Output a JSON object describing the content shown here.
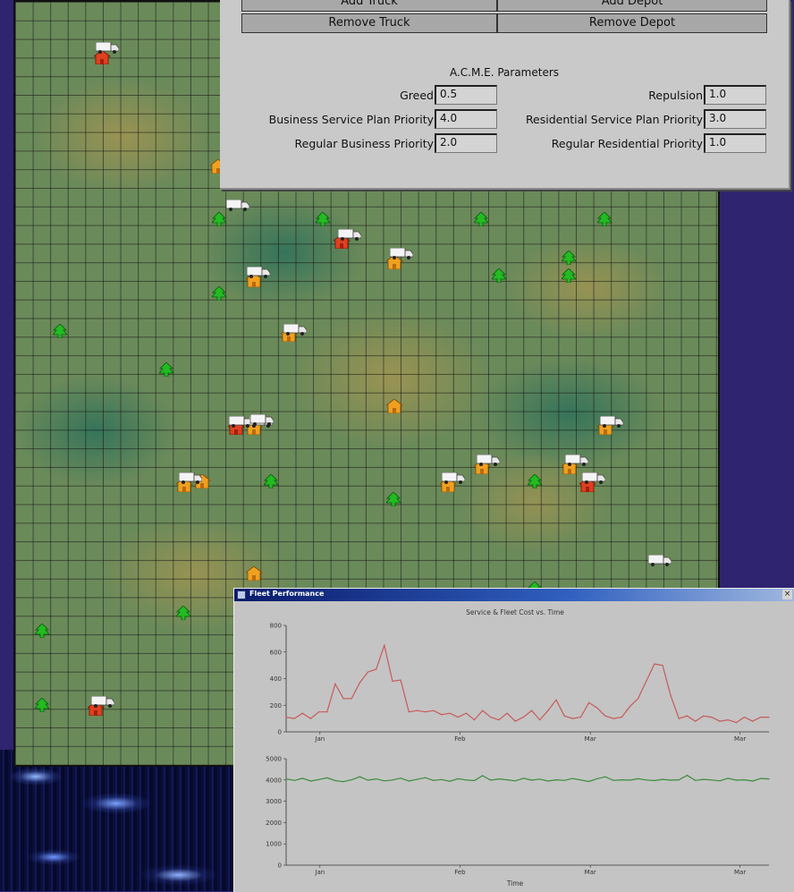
{
  "toolbar": {
    "add_truck_label": "Add Truck",
    "add_depot_label": "Add Depot",
    "remove_truck_label": "Remove Truck",
    "remove_depot_label": "Remove Depot"
  },
  "parameters": {
    "title": "A.C.M.E. Parameters",
    "greed": {
      "label": "Greed",
      "value": "0.5"
    },
    "repulsion": {
      "label": "Repulsion",
      "value": "1.0"
    },
    "business_service_plan_priority": {
      "label": "Business Service Plan Priority",
      "value": "4.0"
    },
    "residential_service_plan_priority": {
      "label": "Residential Service Plan Priority",
      "value": "3.0"
    },
    "regular_business_priority": {
      "label": "Regular Business Priority",
      "value": "2.0"
    },
    "regular_residential_priority": {
      "label": "Regular Residential Priority",
      "value": "1.0"
    }
  },
  "fleet_window": {
    "title": "Fleet Performance",
    "close_glyph": "×"
  },
  "colors": {
    "background": "#2f2470",
    "service_line": "#c85a5a",
    "fleet_line": "#3c8c3c",
    "tree_green": "#22bb22",
    "house_orange": "#f0a020",
    "house_red": "#e04020"
  },
  "chart_data": [
    {
      "type": "line",
      "title": "Service & Fleet Cost vs. Time",
      "xlabel": "",
      "ylabel": "",
      "ylim": [
        0,
        800
      ],
      "yticks": [
        "0",
        "200",
        "400",
        "600",
        "800"
      ],
      "xtick_labels": [
        "Jan",
        "Feb",
        "Mar",
        "Mar"
      ],
      "series": [
        {
          "name": "",
          "values": [
            110,
            100,
            140,
            100,
            150,
            150,
            360,
            250,
            250,
            370,
            450,
            470,
            650,
            380,
            390,
            150,
            160,
            150,
            160,
            130,
            140,
            110,
            140,
            90,
            160,
            110,
            90,
            140,
            80,
            110,
            160,
            90,
            160,
            240,
            120,
            100,
            110,
            220,
            180,
            120,
            100,
            110,
            190,
            250,
            380,
            510,
            500,
            270,
            100,
            120,
            80,
            120,
            110,
            80,
            90,
            70,
            110,
            80,
            110,
            110
          ]
        }
      ]
    },
    {
      "type": "line",
      "title": "",
      "xlabel": "Time",
      "ylabel": "",
      "ylim": [
        0,
        5000
      ],
      "yticks": [
        "0",
        "1000",
        "2000",
        "3000",
        "4000",
        "5000"
      ],
      "xtick_labels": [
        "Jan",
        "Feb",
        "Mar",
        "Mar"
      ],
      "series": [
        {
          "name": "",
          "values": [
            4050,
            3980,
            4080,
            3950,
            4020,
            4100,
            3970,
            3920,
            4010,
            4150,
            3990,
            4050,
            3960,
            4000,
            4090,
            3950,
            4030,
            4110,
            3980,
            4020,
            3940,
            4060,
            4000,
            3970,
            4200,
            3990,
            4050,
            4010,
            3960,
            4080,
            3990,
            4040,
            3950,
            4010,
            3980,
            4070,
            4000,
            3930,
            4060,
            4150,
            3980,
            4010,
            3990,
            4060,
            4000,
            3970,
            4030,
            3990,
            4010,
            4220,
            3980,
            4030,
            4000,
            3960,
            4080,
            3990,
            4010,
            3950,
            4070,
            4050
          ]
        }
      ]
    }
  ]
}
